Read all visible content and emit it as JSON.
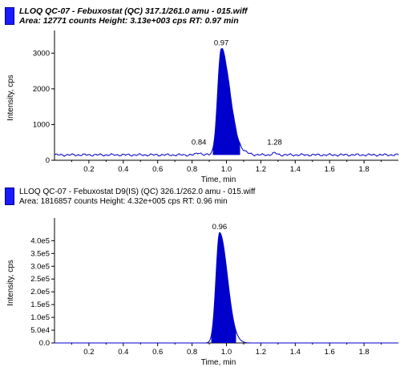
{
  "colors": {
    "trace": "#0000cc",
    "fill": "#0000cc",
    "legend": "#1a1aff"
  },
  "chart_data": [
    {
      "type": "area",
      "title_line1": "LLOQ QC-07 - Febuxostat (QC) 317.1/261.0 amu - 015.wiff",
      "title_line2": "Area: 12771 counts  Height: 3.13e+003 cps  RT: 0.97 min",
      "xlabel": "Time, min",
      "ylabel": "Intensity, cps",
      "xlim": [
        0.0,
        2.0
      ],
      "ylim": [
        0,
        3500
      ],
      "xticks": [
        "0.2",
        "0.4",
        "0.6",
        "0.8",
        "1.0",
        "1.2",
        "1.4",
        "1.6",
        "1.8"
      ],
      "yticks": [
        "0",
        "1000",
        "2000",
        "3000"
      ],
      "peak_labels": [
        "0.97",
        "0.84",
        "1.28"
      ],
      "peak": {
        "rt": 0.97,
        "height": 3130,
        "start": 0.92,
        "end": 1.08
      },
      "baseline": 150
    },
    {
      "type": "area",
      "title_line1": "LLOQ QC-07 - Febuxostat D9(IS) (QC) 326.1/262.0 amu - 015.wiff",
      "title_line2": "Area: 1816857 counts  Height: 4.32e+005 cps  RT: 0.96 min",
      "xlabel": "Time, min",
      "ylabel": "Intensity, cps",
      "xlim": [
        0.0,
        2.0
      ],
      "ylim": [
        0,
        470000
      ],
      "xticks": [
        "0.2",
        "0.4",
        "0.6",
        "0.8",
        "1.0",
        "1.2",
        "1.4",
        "1.6",
        "1.8"
      ],
      "yticks": [
        "0.0",
        "5.0e4",
        "1.0e5",
        "1.5e5",
        "2.0e5",
        "2.5e5",
        "3.0e5",
        "3.5e5",
        "4.0e5"
      ],
      "peak_labels": [
        "0.96"
      ],
      "peak": {
        "rt": 0.96,
        "height": 432000,
        "start": 0.91,
        "end": 1.06
      },
      "baseline": 0
    }
  ]
}
